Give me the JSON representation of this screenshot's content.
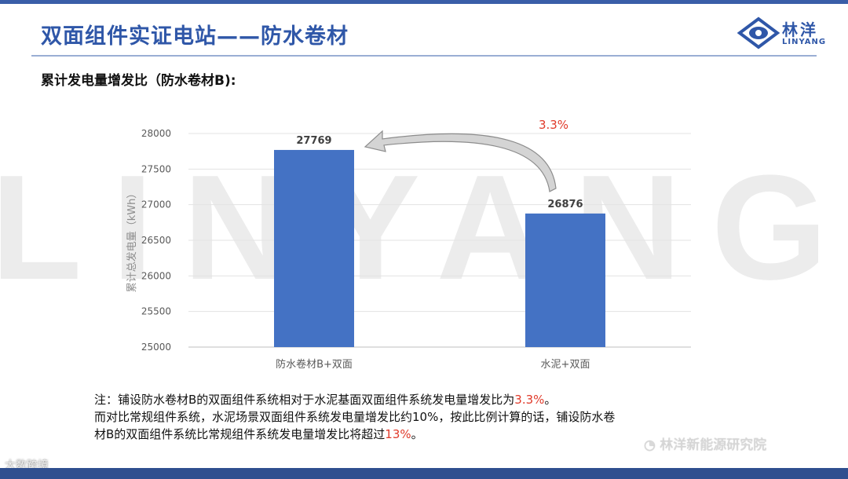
{
  "slide": {
    "title": "双面组件实证电站——防水卷材",
    "subtitle": "累计发电量增发比（防水卷材B):",
    "logo_name": "林洋",
    "logo_sub": "LINYANG",
    "watermark": "LINYANG",
    "note": {
      "line1_a": "注：铺设防水卷材B的双面组件系统相对于水泥基面双面组件系统发电量增发比为",
      "line1_red": "3.3%",
      "line1_b": "。",
      "line2": "而对比常规组件系统，水泥场景双面组件系统发电量增发比约10%，按此比例计算的话，铺设防水卷",
      "line3_a": "材B的双面组件系统比常规组件系统发电量增发比将超过",
      "line3_red": "13%",
      "line3_b": "。"
    },
    "wechat_label": "林洋新能源研究院",
    "corner_label": "大数跨境",
    "accent_color": "#2f57a8",
    "highlight_color": "#e03a2a",
    "bar_color": "#4472c4"
  },
  "chart_data": {
    "type": "bar",
    "categories": [
      "防水卷材B+双面",
      "水泥+双面"
    ],
    "values": [
      27769,
      26876
    ],
    "data_labels": [
      "27769",
      "26876"
    ],
    "ylabel": "累计总发电量（kWh）",
    "ylim": [
      25000,
      28000
    ],
    "yticks": [
      25000,
      25500,
      26000,
      26500,
      27000,
      27500,
      28000
    ],
    "grid": true,
    "annotation": "3.3%"
  }
}
